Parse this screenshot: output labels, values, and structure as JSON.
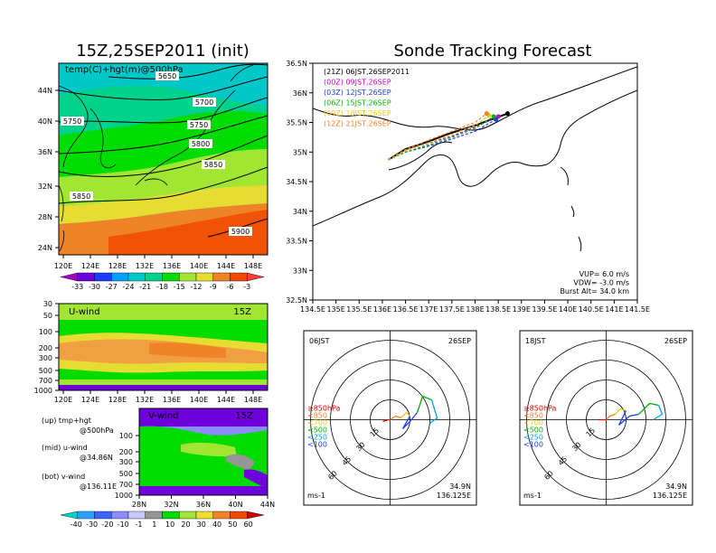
{
  "left_map": {
    "title": "15Z,25SEP2011 (init)",
    "subtitle": "temp(C)+hgt(m)@500hPa",
    "lat_ticks": [
      "44N",
      "40N",
      "36N",
      "32N",
      "28N",
      "24N"
    ],
    "lon_ticks": [
      "120E",
      "124E",
      "128E",
      "132E",
      "136E",
      "140E",
      "144E",
      "148E"
    ],
    "contour_labels": [
      "5650",
      "5700",
      "5750",
      "5750",
      "5800",
      "5850",
      "5850",
      "5900"
    ],
    "colorbar_labels": [
      "-33",
      "-30",
      "-27",
      "-24",
      "-21",
      "-18",
      "-15",
      "-12",
      "-9",
      "-6",
      "-3"
    ],
    "colorbar_colors": [
      "#a000c8",
      "#6e00dc",
      "#1e3cff",
      "#00a0ff",
      "#00c8c8",
      "#00d28c",
      "#00dc00",
      "#a0e632",
      "#e6dc32",
      "#f08228",
      "#f04a00",
      "#fa3c3c"
    ]
  },
  "uwind": {
    "label": "U-wind",
    "time": "15Z",
    "y_ticks": [
      "30",
      "50",
      "100",
      "200",
      "300",
      "500",
      "700",
      "1000"
    ],
    "x_ticks": [
      "120E",
      "124E",
      "128E",
      "132E",
      "136E",
      "140E",
      "144E",
      "148E"
    ]
  },
  "vwind": {
    "label": "V-wind",
    "time": "15Z",
    "y_ticks": [
      "100",
      "200",
      "300",
      "500",
      "700",
      "1000"
    ],
    "x_ticks": [
      "28N",
      "32N",
      "36N",
      "40N",
      "44N"
    ]
  },
  "legend_notes": [
    {
      "a": "(up) tmp+hgt",
      "b": "@500hPa"
    },
    {
      "a": "(mid) u-wind",
      "b": "@34.86N"
    },
    {
      "a": "(bot) v-wind",
      "b": "@136.11E"
    }
  ],
  "wind_colorbar": {
    "labels": [
      "-40",
      "-30",
      "-20",
      "-10",
      "-1",
      "1",
      "10",
      "20",
      "30",
      "40",
      "50",
      "60"
    ],
    "colors": [
      "#00d2c8",
      "#28a0ff",
      "#3c64ff",
      "#8c8cff",
      "#c8c8ff",
      "#969696",
      "#00dc00",
      "#a0e632",
      "#f0dc32",
      "#f08228",
      "#f04a00",
      "#c80000"
    ]
  },
  "track_map": {
    "title": "Sonde Tracking Forecast",
    "lat_ticks": [
      "36.5N",
      "36N",
      "35.5N",
      "35N",
      "34.5N",
      "34N",
      "33.5N",
      "33N",
      "32.5N"
    ],
    "lon_ticks": [
      "134.5E",
      "135E",
      "135.5E",
      "136E",
      "136.5E",
      "137E",
      "137.5E",
      "138E",
      "138.5E",
      "139E",
      "139.5E",
      "140E",
      "140.5E",
      "141E",
      "141.5E"
    ],
    "legend": [
      {
        "text": "(21Z)  06JST,26SEP2011",
        "color": "#000000"
      },
      {
        "text": "(00Z)  09JST,26SEP",
        "color": "#c800c8"
      },
      {
        "text": "(03Z)  12JST,26SEP",
        "color": "#1e3cff"
      },
      {
        "text": "(06Z)  15JST,26SEP",
        "color": "#00b400"
      },
      {
        "text": "(09Z)  18JST,26SEP",
        "color": "#e6c81e"
      },
      {
        "text": "(12Z)  21JST,26SEP",
        "color": "#f08228"
      }
    ],
    "params": [
      "VUP=  6.0  m/s",
      "VDW= -3.0  m/s",
      "Burst Alt=  34.0  km"
    ]
  },
  "hodo_left": {
    "label": "06JST",
    "date": "26SEP",
    "rings": [
      "15",
      "30",
      "45",
      "60"
    ],
    "levels": [
      "≥850hPa",
      "<850",
      "<700",
      "<500",
      "<250",
      "<100"
    ],
    "level_colors": [
      "#e60000",
      "#f08228",
      "#e6c81e",
      "#00b400",
      "#00a0ff",
      "#1e3cff"
    ],
    "unit": "ms-1",
    "coord_lat": "34.9N",
    "coord_lon": "136.125E"
  },
  "hodo_right": {
    "label": "18JST",
    "date": "26SEP",
    "rings": [
      "15",
      "30",
      "45",
      "60"
    ],
    "levels": [
      "≥850hPa",
      "<850",
      "<700",
      "<500",
      "<250",
      "<100"
    ],
    "level_colors": [
      "#e60000",
      "#f08228",
      "#e6c81e",
      "#00b400",
      "#00a0ff",
      "#1e3cff"
    ],
    "unit": "ms-1",
    "coord_lat": "34.9N",
    "coord_lon": "136.125E"
  },
  "chart_data": [
    {
      "type": "heatmap",
      "title": "15Z,25SEP2011 (init)",
      "subtitle": "temp(C)+hgt(m)@500hPa",
      "x_range": [
        "120E",
        "150E"
      ],
      "y_range": [
        "22N",
        "48N"
      ],
      "contours_m": [
        5650,
        5700,
        5750,
        5800,
        5850,
        5900
      ]
    },
    {
      "type": "heatmap",
      "title": "U-wind",
      "x_range": [
        "120E",
        "150E"
      ],
      "y_range_hPa": [
        1000,
        30
      ]
    },
    {
      "type": "heatmap",
      "title": "V-wind",
      "x_range": [
        "28N",
        "44N"
      ],
      "y_range_hPa": [
        1000,
        100
      ]
    },
    {
      "type": "line",
      "title": "Sonde Tracking Forecast",
      "xlim": [
        134.5,
        141.5
      ],
      "ylim": [
        32.5,
        36.5
      ],
      "series": [
        {
          "name": "(21Z) 06JST,26SEP2011",
          "x": [
            136.13,
            136.5,
            137.0,
            137.4,
            138.0,
            138.7
          ],
          "y": [
            34.87,
            35.05,
            35.18,
            35.3,
            35.45,
            35.65
          ]
        },
        {
          "name": "(00Z) 09JST,26SEP",
          "x": [
            136.13,
            136.5,
            137.0,
            137.5,
            138.0,
            138.5
          ],
          "y": [
            34.87,
            35.03,
            35.15,
            35.27,
            35.42,
            35.6
          ]
        },
        {
          "name": "(03Z) 12JST,26SEP",
          "x": [
            136.13,
            136.5,
            137.0,
            137.5,
            138.0,
            138.45
          ],
          "y": [
            34.87,
            35.0,
            35.1,
            35.22,
            35.35,
            35.55
          ]
        },
        {
          "name": "(06Z) 15JST,26SEP",
          "x": [
            136.13,
            136.5,
            137.0,
            137.5,
            138.0,
            138.4
          ],
          "y": [
            34.87,
            35.0,
            35.12,
            35.25,
            35.4,
            35.6
          ]
        },
        {
          "name": "(09Z) 18JST,26SEP",
          "x": [
            136.13,
            136.5,
            137.0,
            137.5,
            138.0,
            138.3
          ],
          "y": [
            34.87,
            35.02,
            35.16,
            35.3,
            35.45,
            35.62
          ]
        },
        {
          "name": "(12Z) 21JST,26SEP",
          "x": [
            136.13,
            136.5,
            137.0,
            137.5,
            138.0,
            138.25
          ],
          "y": [
            34.87,
            35.04,
            35.2,
            35.35,
            35.5,
            35.65
          ]
        }
      ]
    }
  ]
}
